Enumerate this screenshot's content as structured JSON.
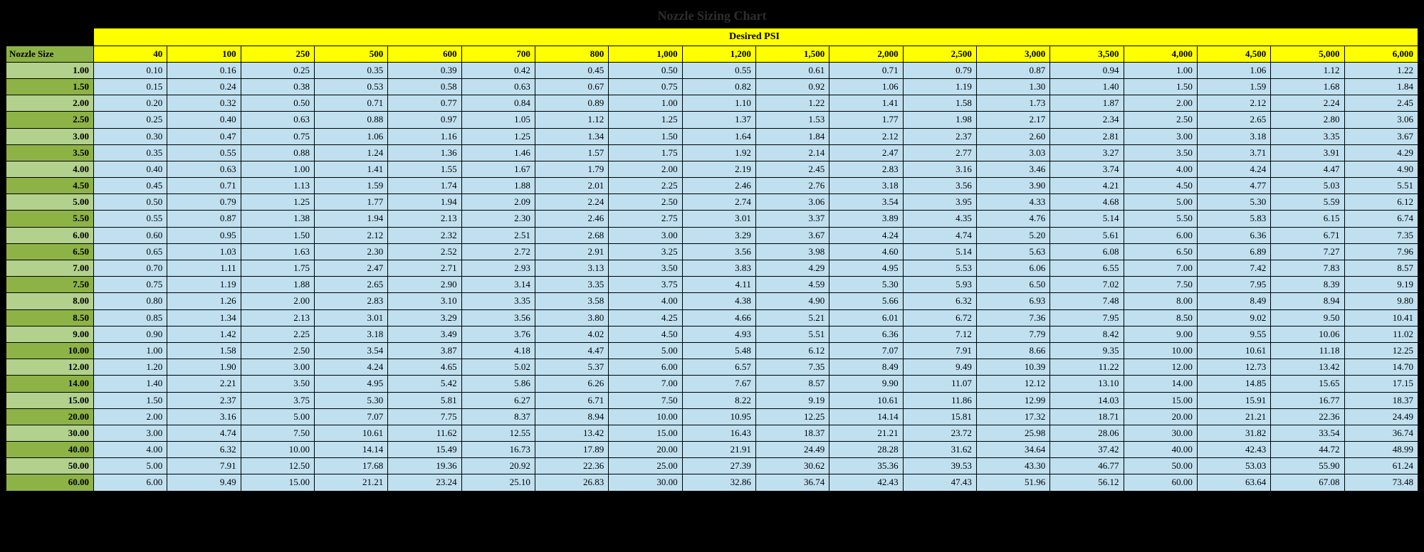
{
  "title": "Nozzle Sizing Chart",
  "psi_header": "Desired PSI",
  "nozzle_size_header": "Nozzle Size",
  "colors": {
    "page_bg": "#000000",
    "yellow": "#ffff00",
    "green_dark": "#8db347",
    "green_light": "#b2d18c",
    "cell_bg": "#c0e0f0",
    "border": "#000000",
    "title_text": "#2e2e2e"
  },
  "typography": {
    "title_fontsize": 18,
    "cell_fontsize": 13,
    "font_family": "Times New Roman"
  },
  "psi_columns": [
    "40",
    "100",
    "250",
    "500",
    "600",
    "700",
    "800",
    "1,000",
    "1,200",
    "1,500",
    "2,000",
    "2,500",
    "3,000",
    "3,500",
    "4,000",
    "4,500",
    "5,000",
    "6,000"
  ],
  "rows": [
    {
      "size": "1.00",
      "vals": [
        "0.10",
        "0.16",
        "0.25",
        "0.35",
        "0.39",
        "0.42",
        "0.45",
        "0.50",
        "0.55",
        "0.61",
        "0.71",
        "0.79",
        "0.87",
        "0.94",
        "1.00",
        "1.06",
        "1.12",
        "1.22"
      ]
    },
    {
      "size": "1.50",
      "vals": [
        "0.15",
        "0.24",
        "0.38",
        "0.53",
        "0.58",
        "0.63",
        "0.67",
        "0.75",
        "0.82",
        "0.92",
        "1.06",
        "1.19",
        "1.30",
        "1.40",
        "1.50",
        "1.59",
        "1.68",
        "1.84"
      ]
    },
    {
      "size": "2.00",
      "vals": [
        "0.20",
        "0.32",
        "0.50",
        "0.71",
        "0.77",
        "0.84",
        "0.89",
        "1.00",
        "1.10",
        "1.22",
        "1.41",
        "1.58",
        "1.73",
        "1.87",
        "2.00",
        "2.12",
        "2.24",
        "2.45"
      ]
    },
    {
      "size": "2.50",
      "vals": [
        "0.25",
        "0.40",
        "0.63",
        "0.88",
        "0.97",
        "1.05",
        "1.12",
        "1.25",
        "1.37",
        "1.53",
        "1.77",
        "1.98",
        "2.17",
        "2.34",
        "2.50",
        "2.65",
        "2.80",
        "3.06"
      ]
    },
    {
      "size": "3.00",
      "vals": [
        "0.30",
        "0.47",
        "0.75",
        "1.06",
        "1.16",
        "1.25",
        "1.34",
        "1.50",
        "1.64",
        "1.84",
        "2.12",
        "2.37",
        "2.60",
        "2.81",
        "3.00",
        "3.18",
        "3.35",
        "3.67"
      ]
    },
    {
      "size": "3.50",
      "vals": [
        "0.35",
        "0.55",
        "0.88",
        "1.24",
        "1.36",
        "1.46",
        "1.57",
        "1.75",
        "1.92",
        "2.14",
        "2.47",
        "2.77",
        "3.03",
        "3.27",
        "3.50",
        "3.71",
        "3.91",
        "4.29"
      ]
    },
    {
      "size": "4.00",
      "vals": [
        "0.40",
        "0.63",
        "1.00",
        "1.41",
        "1.55",
        "1.67",
        "1.79",
        "2.00",
        "2.19",
        "2.45",
        "2.83",
        "3.16",
        "3.46",
        "3.74",
        "4.00",
        "4.24",
        "4.47",
        "4.90"
      ]
    },
    {
      "size": "4.50",
      "vals": [
        "0.45",
        "0.71",
        "1.13",
        "1.59",
        "1.74",
        "1.88",
        "2.01",
        "2.25",
        "2.46",
        "2.76",
        "3.18",
        "3.56",
        "3.90",
        "4.21",
        "4.50",
        "4.77",
        "5.03",
        "5.51"
      ]
    },
    {
      "size": "5.00",
      "vals": [
        "0.50",
        "0.79",
        "1.25",
        "1.77",
        "1.94",
        "2.09",
        "2.24",
        "2.50",
        "2.74",
        "3.06",
        "3.54",
        "3.95",
        "4.33",
        "4.68",
        "5.00",
        "5.30",
        "5.59",
        "6.12"
      ]
    },
    {
      "size": "5.50",
      "vals": [
        "0.55",
        "0.87",
        "1.38",
        "1.94",
        "2.13",
        "2.30",
        "2.46",
        "2.75",
        "3.01",
        "3.37",
        "3.89",
        "4.35",
        "4.76",
        "5.14",
        "5.50",
        "5.83",
        "6.15",
        "6.74"
      ]
    },
    {
      "size": "6.00",
      "vals": [
        "0.60",
        "0.95",
        "1.50",
        "2.12",
        "2.32",
        "2.51",
        "2.68",
        "3.00",
        "3.29",
        "3.67",
        "4.24",
        "4.74",
        "5.20",
        "5.61",
        "6.00",
        "6.36",
        "6.71",
        "7.35"
      ]
    },
    {
      "size": "6.50",
      "vals": [
        "0.65",
        "1.03",
        "1.63",
        "2.30",
        "2.52",
        "2.72",
        "2.91",
        "3.25",
        "3.56",
        "3.98",
        "4.60",
        "5.14",
        "5.63",
        "6.08",
        "6.50",
        "6.89",
        "7.27",
        "7.96"
      ]
    },
    {
      "size": "7.00",
      "vals": [
        "0.70",
        "1.11",
        "1.75",
        "2.47",
        "2.71",
        "2.93",
        "3.13",
        "3.50",
        "3.83",
        "4.29",
        "4.95",
        "5.53",
        "6.06",
        "6.55",
        "7.00",
        "7.42",
        "7.83",
        "8.57"
      ]
    },
    {
      "size": "7.50",
      "vals": [
        "0.75",
        "1.19",
        "1.88",
        "2.65",
        "2.90",
        "3.14",
        "3.35",
        "3.75",
        "4.11",
        "4.59",
        "5.30",
        "5.93",
        "6.50",
        "7.02",
        "7.50",
        "7.95",
        "8.39",
        "9.19"
      ]
    },
    {
      "size": "8.00",
      "vals": [
        "0.80",
        "1.26",
        "2.00",
        "2.83",
        "3.10",
        "3.35",
        "3.58",
        "4.00",
        "4.38",
        "4.90",
        "5.66",
        "6.32",
        "6.93",
        "7.48",
        "8.00",
        "8.49",
        "8.94",
        "9.80"
      ]
    },
    {
      "size": "8.50",
      "vals": [
        "0.85",
        "1.34",
        "2.13",
        "3.01",
        "3.29",
        "3.56",
        "3.80",
        "4.25",
        "4.66",
        "5.21",
        "6.01",
        "6.72",
        "7.36",
        "7.95",
        "8.50",
        "9.02",
        "9.50",
        "10.41"
      ]
    },
    {
      "size": "9.00",
      "vals": [
        "0.90",
        "1.42",
        "2.25",
        "3.18",
        "3.49",
        "3.76",
        "4.02",
        "4.50",
        "4.93",
        "5.51",
        "6.36",
        "7.12",
        "7.79",
        "8.42",
        "9.00",
        "9.55",
        "10.06",
        "11.02"
      ]
    },
    {
      "size": "10.00",
      "vals": [
        "1.00",
        "1.58",
        "2.50",
        "3.54",
        "3.87",
        "4.18",
        "4.47",
        "5.00",
        "5.48",
        "6.12",
        "7.07",
        "7.91",
        "8.66",
        "9.35",
        "10.00",
        "10.61",
        "11.18",
        "12.25"
      ]
    },
    {
      "size": "12.00",
      "vals": [
        "1.20",
        "1.90",
        "3.00",
        "4.24",
        "4.65",
        "5.02",
        "5.37",
        "6.00",
        "6.57",
        "7.35",
        "8.49",
        "9.49",
        "10.39",
        "11.22",
        "12.00",
        "12.73",
        "13.42",
        "14.70"
      ]
    },
    {
      "size": "14.00",
      "vals": [
        "1.40",
        "2.21",
        "3.50",
        "4.95",
        "5.42",
        "5.86",
        "6.26",
        "7.00",
        "7.67",
        "8.57",
        "9.90",
        "11.07",
        "12.12",
        "13.10",
        "14.00",
        "14.85",
        "15.65",
        "17.15"
      ]
    },
    {
      "size": "15.00",
      "vals": [
        "1.50",
        "2.37",
        "3.75",
        "5.30",
        "5.81",
        "6.27",
        "6.71",
        "7.50",
        "8.22",
        "9.19",
        "10.61",
        "11.86",
        "12.99",
        "14.03",
        "15.00",
        "15.91",
        "16.77",
        "18.37"
      ]
    },
    {
      "size": "20.00",
      "vals": [
        "2.00",
        "3.16",
        "5.00",
        "7.07",
        "7.75",
        "8.37",
        "8.94",
        "10.00",
        "10.95",
        "12.25",
        "14.14",
        "15.81",
        "17.32",
        "18.71",
        "20.00",
        "21.21",
        "22.36",
        "24.49"
      ]
    },
    {
      "size": "30.00",
      "vals": [
        "3.00",
        "4.74",
        "7.50",
        "10.61",
        "11.62",
        "12.55",
        "13.42",
        "15.00",
        "16.43",
        "18.37",
        "21.21",
        "23.72",
        "25.98",
        "28.06",
        "30.00",
        "31.82",
        "33.54",
        "36.74"
      ]
    },
    {
      "size": "40.00",
      "vals": [
        "4.00",
        "6.32",
        "10.00",
        "14.14",
        "15.49",
        "16.73",
        "17.89",
        "20.00",
        "21.91",
        "24.49",
        "28.28",
        "31.62",
        "34.64",
        "37.42",
        "40.00",
        "42.43",
        "44.72",
        "48.99"
      ]
    },
    {
      "size": "50.00",
      "vals": [
        "5.00",
        "7.91",
        "12.50",
        "17.68",
        "19.36",
        "20.92",
        "22.36",
        "25.00",
        "27.39",
        "30.62",
        "35.36",
        "39.53",
        "43.30",
        "46.77",
        "50.00",
        "53.03",
        "55.90",
        "61.24"
      ]
    },
    {
      "size": "60.00",
      "vals": [
        "6.00",
        "9.49",
        "15.00",
        "21.21",
        "23.24",
        "25.10",
        "26.83",
        "30.00",
        "32.86",
        "36.74",
        "42.43",
        "47.43",
        "51.96",
        "56.12",
        "60.00",
        "63.64",
        "67.08",
        "73.48"
      ]
    }
  ]
}
